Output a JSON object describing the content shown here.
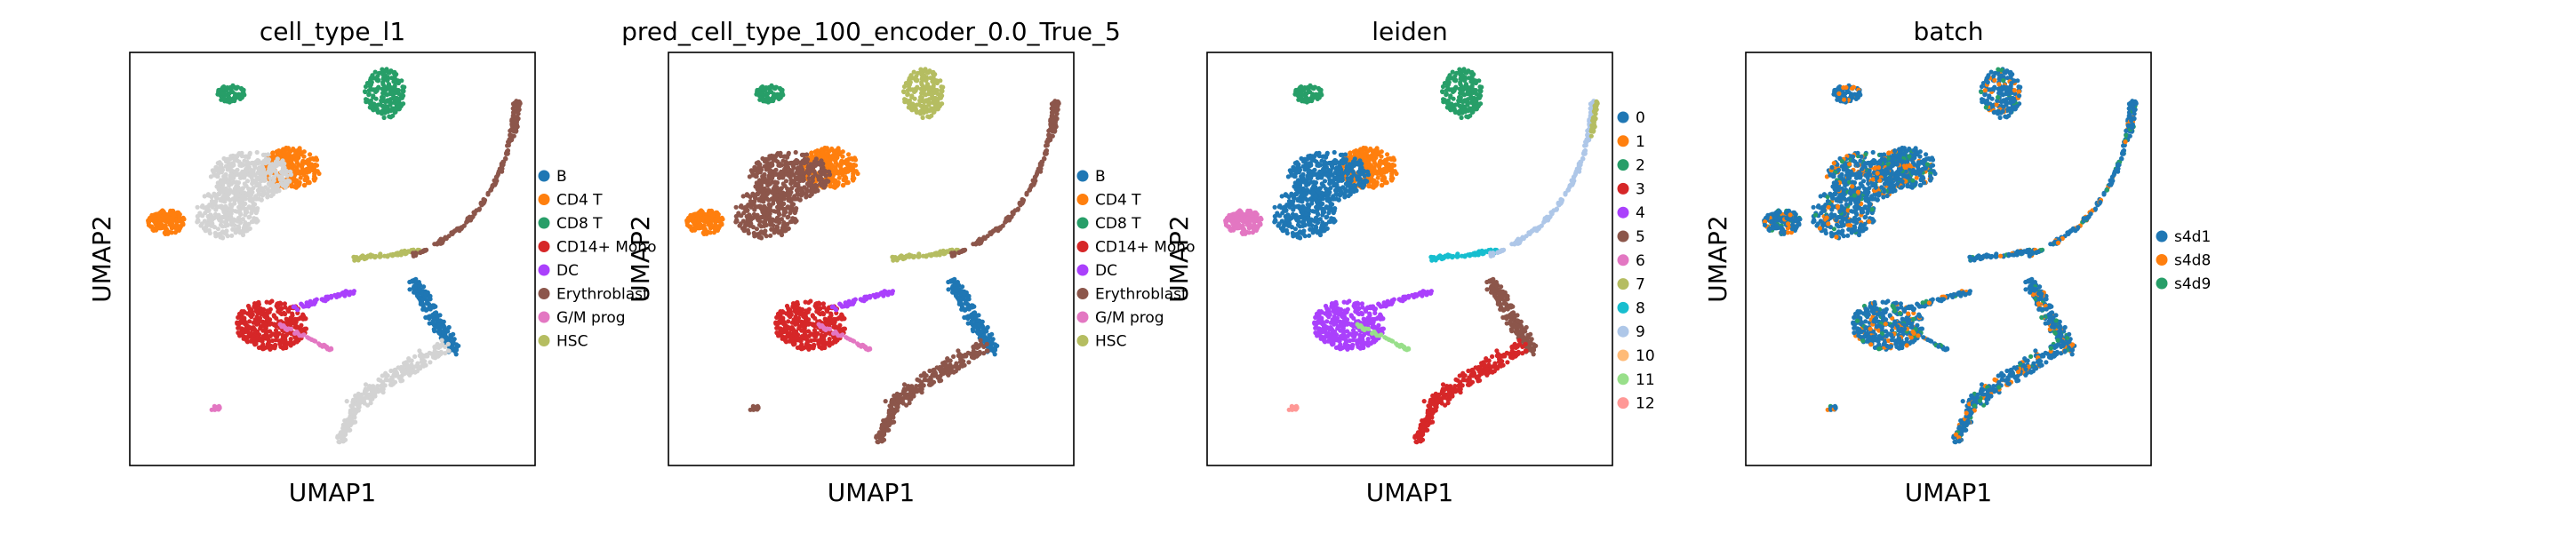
{
  "chart_data": [
    {
      "type": "scatter",
      "title": "cell_type_l1",
      "xlabel": "UMAP1",
      "ylabel": "UMAP2",
      "grid": false,
      "ticks": false,
      "legend_position": "right",
      "legend": [
        {
          "label": "B",
          "color": "#1f77b4"
        },
        {
          "label": "CD4 T",
          "color": "#ff7f0e"
        },
        {
          "label": "CD8 T",
          "color": "#279e68"
        },
        {
          "label": "CD14+ Mono",
          "color": "#d62728"
        },
        {
          "label": "DC",
          "color": "#aa40fc"
        },
        {
          "label": "Erythroblast",
          "color": "#8c564b"
        },
        {
          "label": "G/M prog",
          "color": "#e377c2"
        },
        {
          "label": "HSC",
          "color": "#b5bd61"
        }
      ]
    },
    {
      "type": "scatter",
      "title": "pred_cell_type_100_encoder_0.0_True_5",
      "xlabel": "UMAP1",
      "ylabel": "UMAP2",
      "grid": false,
      "ticks": false,
      "legend_position": "right",
      "legend": [
        {
          "label": "B",
          "color": "#1f77b4"
        },
        {
          "label": "CD4 T",
          "color": "#ff7f0e"
        },
        {
          "label": "CD8 T",
          "color": "#279e68"
        },
        {
          "label": "CD14+ Mono",
          "color": "#d62728"
        },
        {
          "label": "DC",
          "color": "#aa40fc"
        },
        {
          "label": "Erythroblast",
          "color": "#8c564b"
        },
        {
          "label": "G/M prog",
          "color": "#e377c2"
        },
        {
          "label": "HSC",
          "color": "#b5bd61"
        }
      ]
    },
    {
      "type": "scatter",
      "title": "leiden",
      "xlabel": "UMAP1",
      "ylabel": "UMAP2",
      "grid": false,
      "ticks": false,
      "legend_position": "right",
      "legend": [
        {
          "label": "0",
          "color": "#1f77b4"
        },
        {
          "label": "1",
          "color": "#ff7f0e"
        },
        {
          "label": "2",
          "color": "#279e68"
        },
        {
          "label": "3",
          "color": "#d62728"
        },
        {
          "label": "4",
          "color": "#aa40fc"
        },
        {
          "label": "5",
          "color": "#8c564b"
        },
        {
          "label": "6",
          "color": "#e377c2"
        },
        {
          "label": "7",
          "color": "#b5bd61"
        },
        {
          "label": "8",
          "color": "#17becf"
        },
        {
          "label": "9",
          "color": "#aec7e8"
        },
        {
          "label": "10",
          "color": "#ffbb78"
        },
        {
          "label": "11",
          "color": "#98df8a"
        },
        {
          "label": "12",
          "color": "#ff9896"
        }
      ]
    },
    {
      "type": "scatter",
      "title": "batch",
      "xlabel": "UMAP1",
      "ylabel": "UMAP2",
      "grid": false,
      "ticks": false,
      "legend_position": "right",
      "legend": [
        {
          "label": "s4d1",
          "color": "#1f77b4"
        },
        {
          "label": "s4d8",
          "color": "#ff7f0e"
        },
        {
          "label": "s4d9",
          "color": "#279e68"
        }
      ]
    }
  ]
}
